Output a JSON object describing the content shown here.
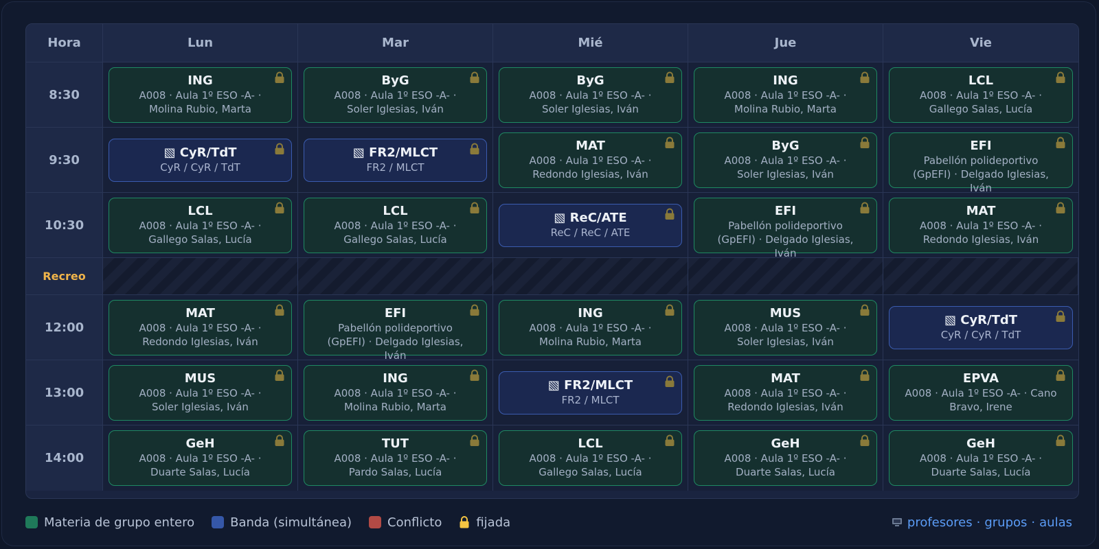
{
  "header": {
    "time_label": "Hora",
    "days": [
      "Lun",
      "Mar",
      "Mié",
      "Jue",
      "Vie"
    ]
  },
  "recess": {
    "label": "Recreo"
  },
  "rows": [
    {
      "time": "8:30",
      "cells": [
        {
          "type": "full",
          "code": "ING",
          "info": "A008 · Aula 1º ESO -A- · Molina Rubio, Marta"
        },
        {
          "type": "full",
          "code": "ByG",
          "info": "A008 · Aula 1º ESO -A- · Soler Iglesias, Iván"
        },
        {
          "type": "full",
          "code": "ByG",
          "info": "A008 · Aula 1º ESO -A- · Soler Iglesias, Iván"
        },
        {
          "type": "full",
          "code": "ING",
          "info": "A008 · Aula 1º ESO -A- · Molina Rubio, Marta"
        },
        {
          "type": "full",
          "code": "LCL",
          "info": "A008 · Aula 1º ESO -A- · Gallego Salas, Lucía"
        }
      ]
    },
    {
      "time": "9:30",
      "cells": [
        {
          "type": "band",
          "code": "▧ CyR/TdT",
          "info": "CyR / CyR / TdT"
        },
        {
          "type": "band",
          "code": "▧ FR2/MLCT",
          "info": "FR2 / MLCT"
        },
        {
          "type": "full",
          "code": "MAT",
          "info": "A008 · Aula 1º ESO -A- · Redondo Iglesias, Iván"
        },
        {
          "type": "full",
          "code": "ByG",
          "info": "A008 · Aula 1º ESO -A- · Soler Iglesias, Iván"
        },
        {
          "type": "full",
          "code": "EFI",
          "info": "Pabellón polideportivo (GpEFI) · Delgado Iglesias, Iván"
        }
      ]
    },
    {
      "time": "10:30",
      "cells": [
        {
          "type": "full",
          "code": "LCL",
          "info": "A008 · Aula 1º ESO -A- · Gallego Salas, Lucía"
        },
        {
          "type": "full",
          "code": "LCL",
          "info": "A008 · Aula 1º ESO -A- · Gallego Salas, Lucía"
        },
        {
          "type": "band",
          "code": "▧ ReC/ATE",
          "info": "ReC / ReC / ATE"
        },
        {
          "type": "full",
          "code": "EFI",
          "info": "Pabellón polideportivo (GpEFI) · Delgado Iglesias, Iván"
        },
        {
          "type": "full",
          "code": "MAT",
          "info": "A008 · Aula 1º ESO -A- · Redondo Iglesias, Iván"
        }
      ]
    },
    {
      "time": "12:00",
      "cells": [
        {
          "type": "full",
          "code": "MAT",
          "info": "A008 · Aula 1º ESO -A- · Redondo Iglesias, Iván"
        },
        {
          "type": "full",
          "code": "EFI",
          "info": "Pabellón polideportivo (GpEFI) · Delgado Iglesias, Iván"
        },
        {
          "type": "full",
          "code": "ING",
          "info": "A008 · Aula 1º ESO -A- · Molina Rubio, Marta"
        },
        {
          "type": "full",
          "code": "MUS",
          "info": "A008 · Aula 1º ESO -A- · Soler Iglesias, Iván"
        },
        {
          "type": "band",
          "code": "▧ CyR/TdT",
          "info": "CyR / CyR / TdT"
        }
      ]
    },
    {
      "time": "13:00",
      "cells": [
        {
          "type": "full",
          "code": "MUS",
          "info": "A008 · Aula 1º ESO -A- · Soler Iglesias, Iván"
        },
        {
          "type": "full",
          "code": "ING",
          "info": "A008 · Aula 1º ESO -A- · Molina Rubio, Marta"
        },
        {
          "type": "band",
          "code": "▧ FR2/MLCT",
          "info": "FR2 / MLCT"
        },
        {
          "type": "full",
          "code": "MAT",
          "info": "A008 · Aula 1º ESO -A- · Redondo Iglesias, Iván"
        },
        {
          "type": "full",
          "code": "EPVA",
          "info": "A008 · Aula 1º ESO -A- · Cano Bravo, Irene"
        }
      ]
    },
    {
      "time": "14:00",
      "cells": [
        {
          "type": "full",
          "code": "GeH",
          "info": "A008 · Aula 1º ESO -A- · Duarte Salas, Lucía"
        },
        {
          "type": "full",
          "code": "TUT",
          "info": "A008 · Aula 1º ESO -A- · Pardo Salas, Lucía"
        },
        {
          "type": "full",
          "code": "LCL",
          "info": "A008 · Aula 1º ESO -A- · Gallego Salas, Lucía"
        },
        {
          "type": "full",
          "code": "GeH",
          "info": "A008 · Aula 1º ESO -A- · Duarte Salas, Lucía"
        },
        {
          "type": "full",
          "code": "GeH",
          "info": "A008 · Aula 1º ESO -A- · Duarte Salas, Lucía"
        }
      ]
    }
  ],
  "legend": [
    {
      "swatch": "#1f7a5a",
      "label": "Materia de grupo entero"
    },
    {
      "swatch": "#3557a8",
      "label": "Banda (simultánea)"
    },
    {
      "swatch": "#b24a45",
      "label": "Conflicto"
    },
    {
      "icon": "lock-icon",
      "label": "fijada"
    }
  ],
  "footer_links": {
    "icon": "computer-icon",
    "items": [
      "profesores",
      "grupos",
      "aulas"
    ],
    "separator": "·"
  },
  "colors": {
    "full_border": "#1f8a63",
    "band_border": "#3b5cb0",
    "lock": "#8a7a3a",
    "recess_label": "#f0b44a",
    "link": "#5b9cf6"
  }
}
